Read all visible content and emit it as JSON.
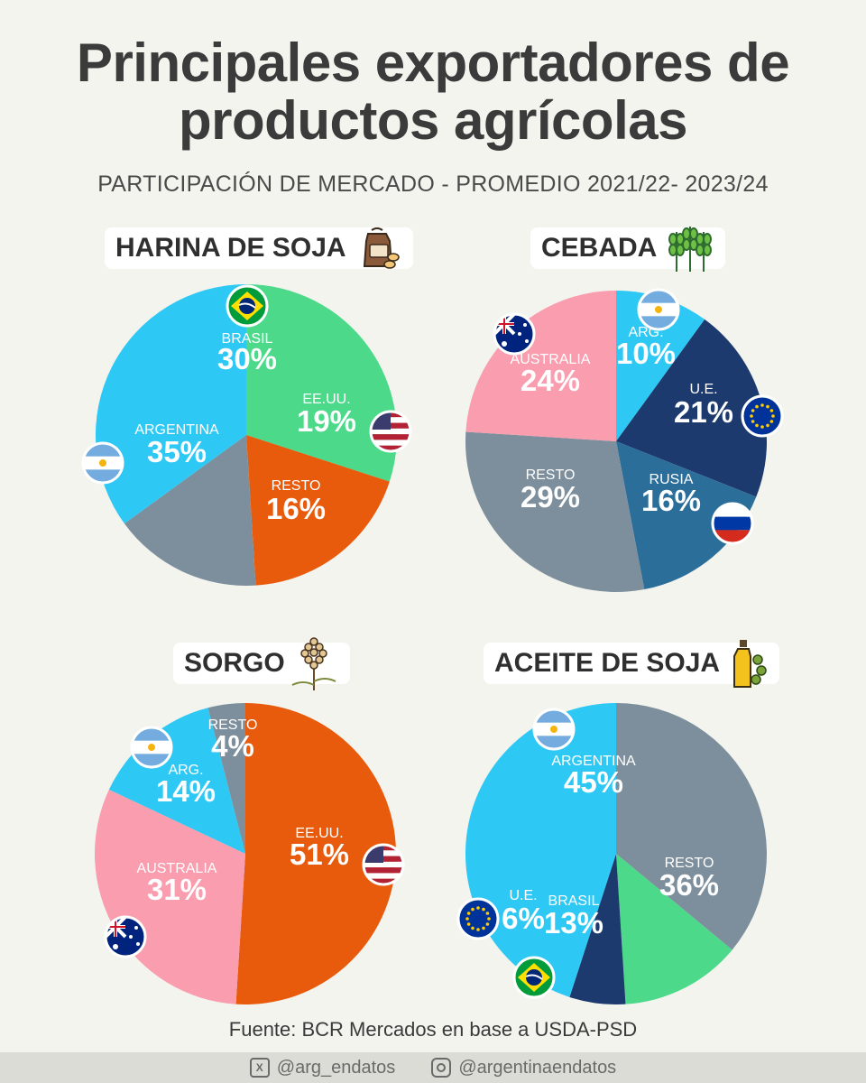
{
  "header": {
    "title_line1": "Principales exportadores de",
    "title_line2": "productos agrícolas",
    "subtitle": "PARTICIPACIÓN DE MERCADO - PROMEDIO 2021/22- 2023/24"
  },
  "chart_data": [
    {
      "type": "pie",
      "title": "HARINA DE SOJA",
      "icon": "flour-sack-icon",
      "slices": [
        {
          "label": "BRASIL",
          "value": 30,
          "display": "30%",
          "color": "#4cd98a",
          "flag": "brazil-flag-icon"
        },
        {
          "label": "EE.UU.",
          "value": 19,
          "display": "19%",
          "color": "#e85a0c",
          "flag": "usa-flag-icon"
        },
        {
          "label": "RESTO",
          "value": 16,
          "display": "16%",
          "color": "#7d8f9c",
          "flag": null
        },
        {
          "label": "ARGENTINA",
          "value": 35,
          "display": "35%",
          "color": "#2ec8f5",
          "flag": "argentina-flag-icon"
        }
      ]
    },
    {
      "type": "pie",
      "title": "CEBADA",
      "icon": "wheat-icon",
      "slices": [
        {
          "label": "ARG.",
          "value": 10,
          "display": "10%",
          "color": "#2ec8f5",
          "flag": "argentina-flag-icon"
        },
        {
          "label": "U.E.",
          "value": 21,
          "display": "21%",
          "color": "#1d3a6e",
          "flag": "eu-flag-icon"
        },
        {
          "label": "RUSIA",
          "value": 16,
          "display": "16%",
          "color": "#2c6e9a",
          "flag": "russia-flag-icon"
        },
        {
          "label": "RESTO",
          "value": 29,
          "display": "29%",
          "color": "#7d8f9c",
          "flag": null
        },
        {
          "label": "AUSTRALIA",
          "value": 24,
          "display": "24%",
          "color": "#f99daf",
          "flag": "australia-flag-icon"
        }
      ]
    },
    {
      "type": "pie",
      "title": "SORGO",
      "icon": "sorghum-icon",
      "slices": [
        {
          "label": "EE.UU.",
          "value": 51,
          "display": "51%",
          "color": "#e85a0c",
          "flag": "usa-flag-icon"
        },
        {
          "label": "AUSTRALIA",
          "value": 31,
          "display": "31%",
          "color": "#f99daf",
          "flag": "australia-flag-icon"
        },
        {
          "label": "ARG.",
          "value": 14,
          "display": "14%",
          "color": "#2ec8f5",
          "flag": "argentina-flag-icon"
        },
        {
          "label": "RESTO",
          "value": 4,
          "display": "4%",
          "color": "#7d8f9c",
          "flag": null
        }
      ]
    },
    {
      "type": "pie",
      "title": "ACEITE DE SOJA",
      "icon": "oil-bottle-icon",
      "slices": [
        {
          "label": "RESTO",
          "value": 36,
          "display": "36%",
          "color": "#7d8f9c",
          "flag": null
        },
        {
          "label": "BRASIL",
          "value": 13,
          "display": "13%",
          "color": "#4cd98a",
          "flag": "brazil-flag-icon"
        },
        {
          "label": "U.E.",
          "value": 6,
          "display": "6%",
          "color": "#1d3a6e",
          "flag": "eu-flag-icon"
        },
        {
          "label": "ARGENTINA",
          "value": 45,
          "display": "45%",
          "color": "#2ec8f5",
          "flag": "argentina-flag-icon"
        }
      ]
    }
  ],
  "source": "Fuente: BCR Mercados en base a USDA-PSD",
  "footer": {
    "x_handle": "@arg_endatos",
    "x_icon": "x-logo-icon",
    "ig_handle": "@argentinaendatos",
    "ig_icon": "instagram-icon"
  }
}
